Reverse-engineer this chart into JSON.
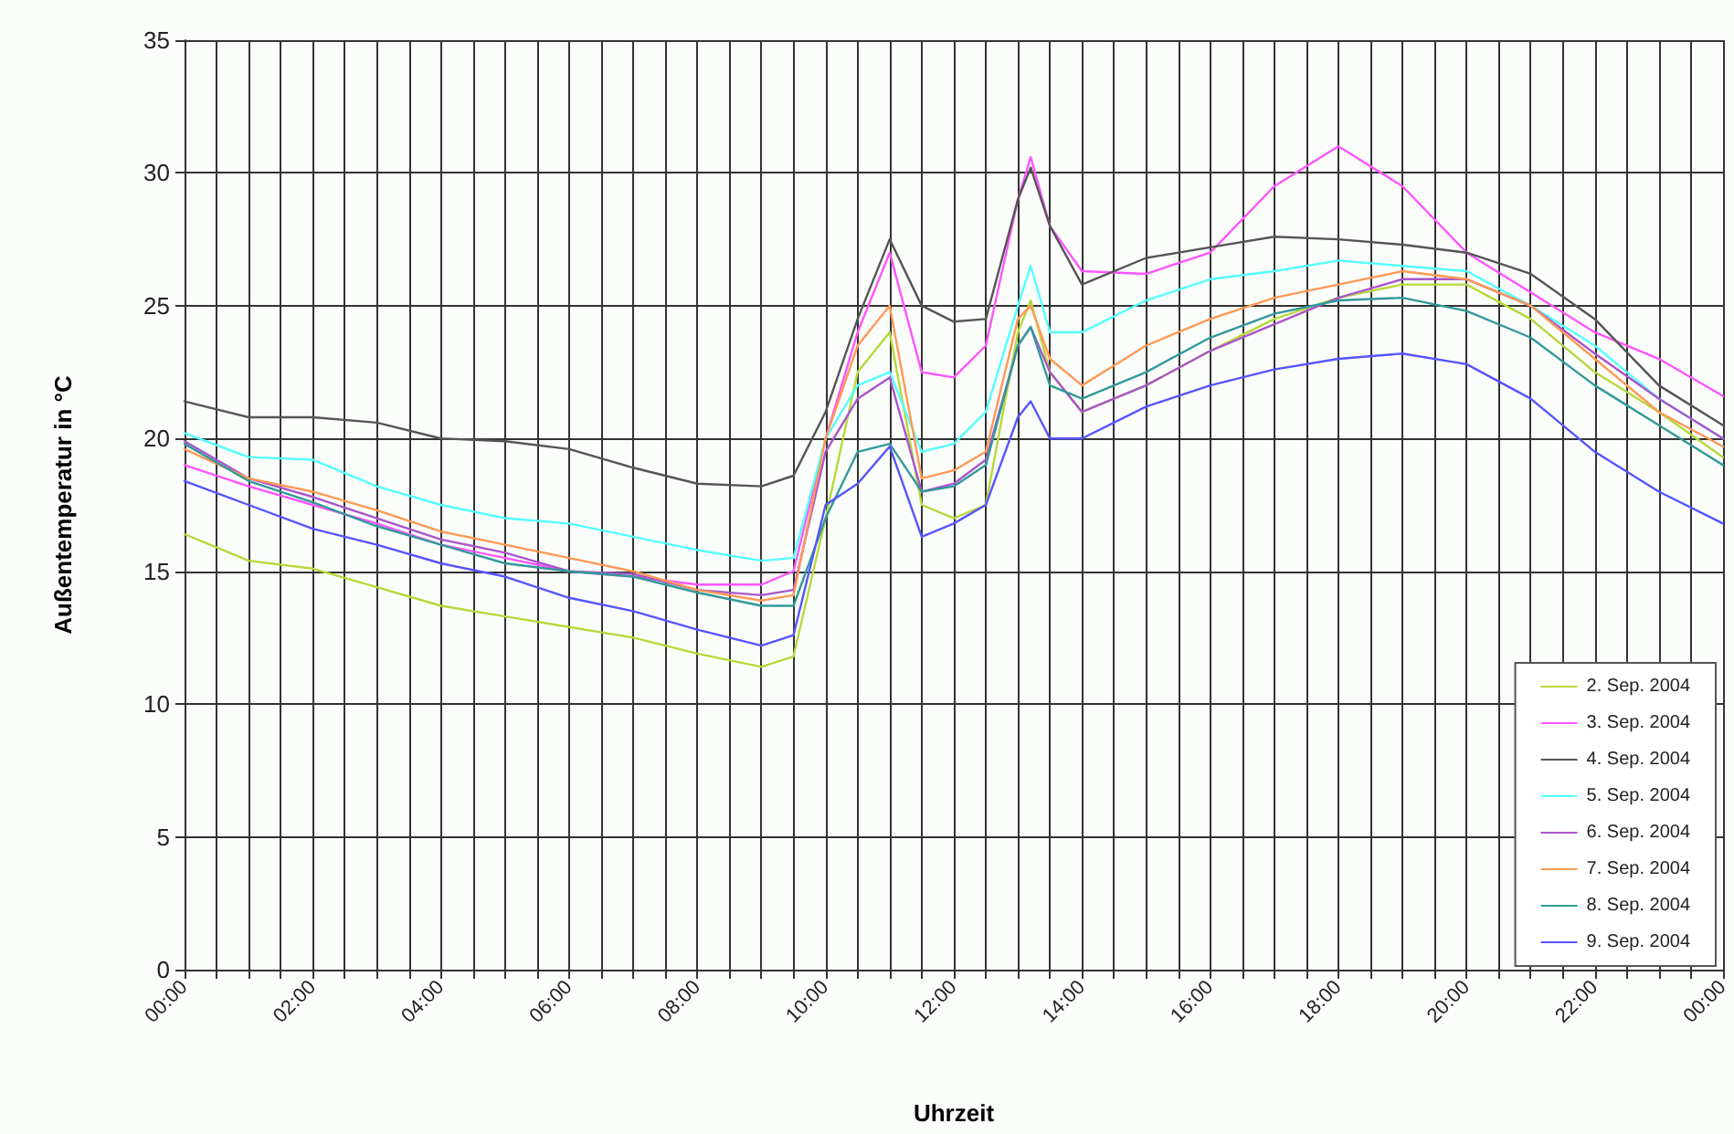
{
  "chart_data": {
    "type": "line",
    "xlabel": "Uhrzeit",
    "ylabel": "Außentemperatur in °C",
    "x": [
      0,
      1,
      2,
      3,
      4,
      5,
      6,
      7,
      8,
      9,
      9.5,
      10,
      10.5,
      11,
      11.5,
      12,
      12.5,
      13,
      13.2,
      13.5,
      14,
      15,
      16,
      17,
      18,
      19,
      20,
      21,
      22,
      23,
      24
    ],
    "series": [
      {
        "name": "2. Sep. 2004",
        "color": "#b8d83a",
        "values": [
          16.4,
          15.4,
          15.1,
          14.4,
          13.7,
          13.3,
          12.9,
          12.5,
          11.9,
          11.4,
          11.8,
          17,
          22.5,
          24,
          17.5,
          17,
          17.5,
          24,
          25.2,
          22.5,
          21,
          22,
          23.3,
          24.5,
          25.3,
          25.8,
          25.8,
          24.5,
          22.5,
          21,
          19.3
        ]
      },
      {
        "name": "3. Sep. 2004",
        "color": "#ff55ff",
        "values": [
          19,
          18.2,
          17.5,
          16.8,
          16,
          15.5,
          15,
          14.8,
          14.5,
          14.5,
          15,
          20,
          24,
          27,
          22.5,
          22.3,
          23.5,
          29,
          30.6,
          28,
          26.3,
          26.2,
          27,
          29.5,
          31,
          29.5,
          27,
          25.5,
          24,
          23,
          21.6
        ]
      },
      {
        "name": "4. Sep. 2004",
        "color": "#555555",
        "values": [
          21.4,
          20.8,
          20.8,
          20.6,
          20,
          19.9,
          19.6,
          18.9,
          18.3,
          18.2,
          18.6,
          21,
          24.5,
          27.5,
          25,
          24.4,
          24.5,
          29,
          30.2,
          28,
          25.8,
          26.8,
          27.2,
          27.6,
          27.5,
          27.3,
          27,
          26.2,
          24.5,
          22,
          20.5
        ]
      },
      {
        "name": "5. Sep. 2004",
        "color": "#55ffff",
        "values": [
          20.2,
          19.3,
          19.2,
          18.2,
          17.5,
          17,
          16.8,
          16.3,
          15.8,
          15.4,
          15.5,
          20,
          22,
          22.5,
          19.5,
          19.8,
          21,
          25,
          26.5,
          24,
          24,
          25.2,
          26,
          26.3,
          26.7,
          26.5,
          26.3,
          25,
          23.5,
          21.5,
          20
        ]
      },
      {
        "name": "6. Sep. 2004",
        "color": "#aa55cc",
        "values": [
          19.9,
          18.5,
          17.8,
          17,
          16.2,
          15.7,
          15,
          14.9,
          14.3,
          14.1,
          14.3,
          19.5,
          21.5,
          22.3,
          18,
          18.3,
          19.2,
          23.5,
          24.2,
          22.5,
          21,
          22,
          23.3,
          24.3,
          25.3,
          26,
          26,
          25,
          23.2,
          21.5,
          20
        ]
      },
      {
        "name": "7. Sep. 2004",
        "color": "#ff9955",
        "values": [
          19.6,
          18.5,
          18,
          17.3,
          16.5,
          16,
          15.5,
          15,
          14.3,
          13.9,
          14.1,
          20,
          23.5,
          25,
          18.5,
          18.8,
          19.5,
          24.5,
          25,
          23,
          22,
          23.5,
          24.5,
          25.3,
          25.8,
          26.3,
          26,
          25,
          23,
          21,
          19.7
        ]
      },
      {
        "name": "8. Sep. 2004",
        "color": "#339999",
        "values": [
          19.8,
          18.4,
          17.6,
          16.7,
          16,
          15.3,
          15,
          14.8,
          14.2,
          13.7,
          13.7,
          17,
          19.5,
          19.8,
          18,
          18.2,
          19,
          23.5,
          24.2,
          22,
          21.5,
          22.5,
          23.8,
          24.7,
          25.2,
          25.3,
          24.8,
          23.8,
          22,
          20.5,
          19
        ]
      },
      {
        "name": "9. Sep. 2004",
        "color": "#5555ff",
        "values": [
          18.4,
          17.5,
          16.6,
          16,
          15.3,
          14.8,
          14,
          13.5,
          12.8,
          12.2,
          12.6,
          17.5,
          18.3,
          19.7,
          16.3,
          16.8,
          17.5,
          20.8,
          21.4,
          20,
          20,
          21.2,
          22,
          22.6,
          23,
          23.2,
          22.8,
          21.5,
          19.5,
          18,
          16.8
        ]
      }
    ],
    "xlim": [
      0,
      24
    ],
    "xticks": [
      {
        "value": 0,
        "label": "00:00"
      },
      {
        "value": 0.5,
        "label": null
      },
      {
        "value": 1,
        "label": null
      },
      {
        "value": 1.5,
        "label": null
      },
      {
        "value": 2,
        "label": "02:00"
      },
      {
        "value": 2.5,
        "label": null
      },
      {
        "value": 3,
        "label": null
      },
      {
        "value": 3.5,
        "label": null
      },
      {
        "value": 4,
        "label": "04:00"
      },
      {
        "value": 4.5,
        "label": null
      },
      {
        "value": 5,
        "label": null
      },
      {
        "value": 5.5,
        "label": null
      },
      {
        "value": 6,
        "label": "06:00"
      },
      {
        "value": 6.5,
        "label": null
      },
      {
        "value": 7,
        "label": null
      },
      {
        "value": 7.5,
        "label": null
      },
      {
        "value": 8,
        "label": "08:00"
      },
      {
        "value": 8.5,
        "label": null
      },
      {
        "value": 9,
        "label": null
      },
      {
        "value": 9.5,
        "label": null
      },
      {
        "value": 10,
        "label": "10:00"
      },
      {
        "value": 10.5,
        "label": null
      },
      {
        "value": 11,
        "label": null
      },
      {
        "value": 11.5,
        "label": null
      },
      {
        "value": 12,
        "label": "12:00"
      },
      {
        "value": 12.5,
        "label": null
      },
      {
        "value": 13,
        "label": null
      },
      {
        "value": 13.5,
        "label": null
      },
      {
        "value": 14,
        "label": "14:00"
      },
      {
        "value": 14.5,
        "label": null
      },
      {
        "value": 15,
        "label": null
      },
      {
        "value": 15.5,
        "label": null
      },
      {
        "value": 16,
        "label": "16:00"
      },
      {
        "value": 16.5,
        "label": null
      },
      {
        "value": 17,
        "label": null
      },
      {
        "value": 17.5,
        "label": null
      },
      {
        "value": 18,
        "label": "18:00"
      },
      {
        "value": 18.5,
        "label": null
      },
      {
        "value": 19,
        "label": null
      },
      {
        "value": 19.5,
        "label": null
      },
      {
        "value": 20,
        "label": "20:00"
      },
      {
        "value": 20.5,
        "label": null
      },
      {
        "value": 21,
        "label": null
      },
      {
        "value": 21.5,
        "label": null
      },
      {
        "value": 22,
        "label": "22:00"
      },
      {
        "value": 22.5,
        "label": null
      },
      {
        "value": 23,
        "label": null
      },
      {
        "value": 23.5,
        "label": null
      },
      {
        "value": 24,
        "label": "00:00"
      }
    ],
    "ylim": [
      0,
      35
    ],
    "yticks": [
      0,
      5,
      10,
      15,
      20,
      25,
      30,
      35
    ],
    "grid": true,
    "legend": "bottom right",
    "marker": "none",
    "line_style": "solid"
  }
}
